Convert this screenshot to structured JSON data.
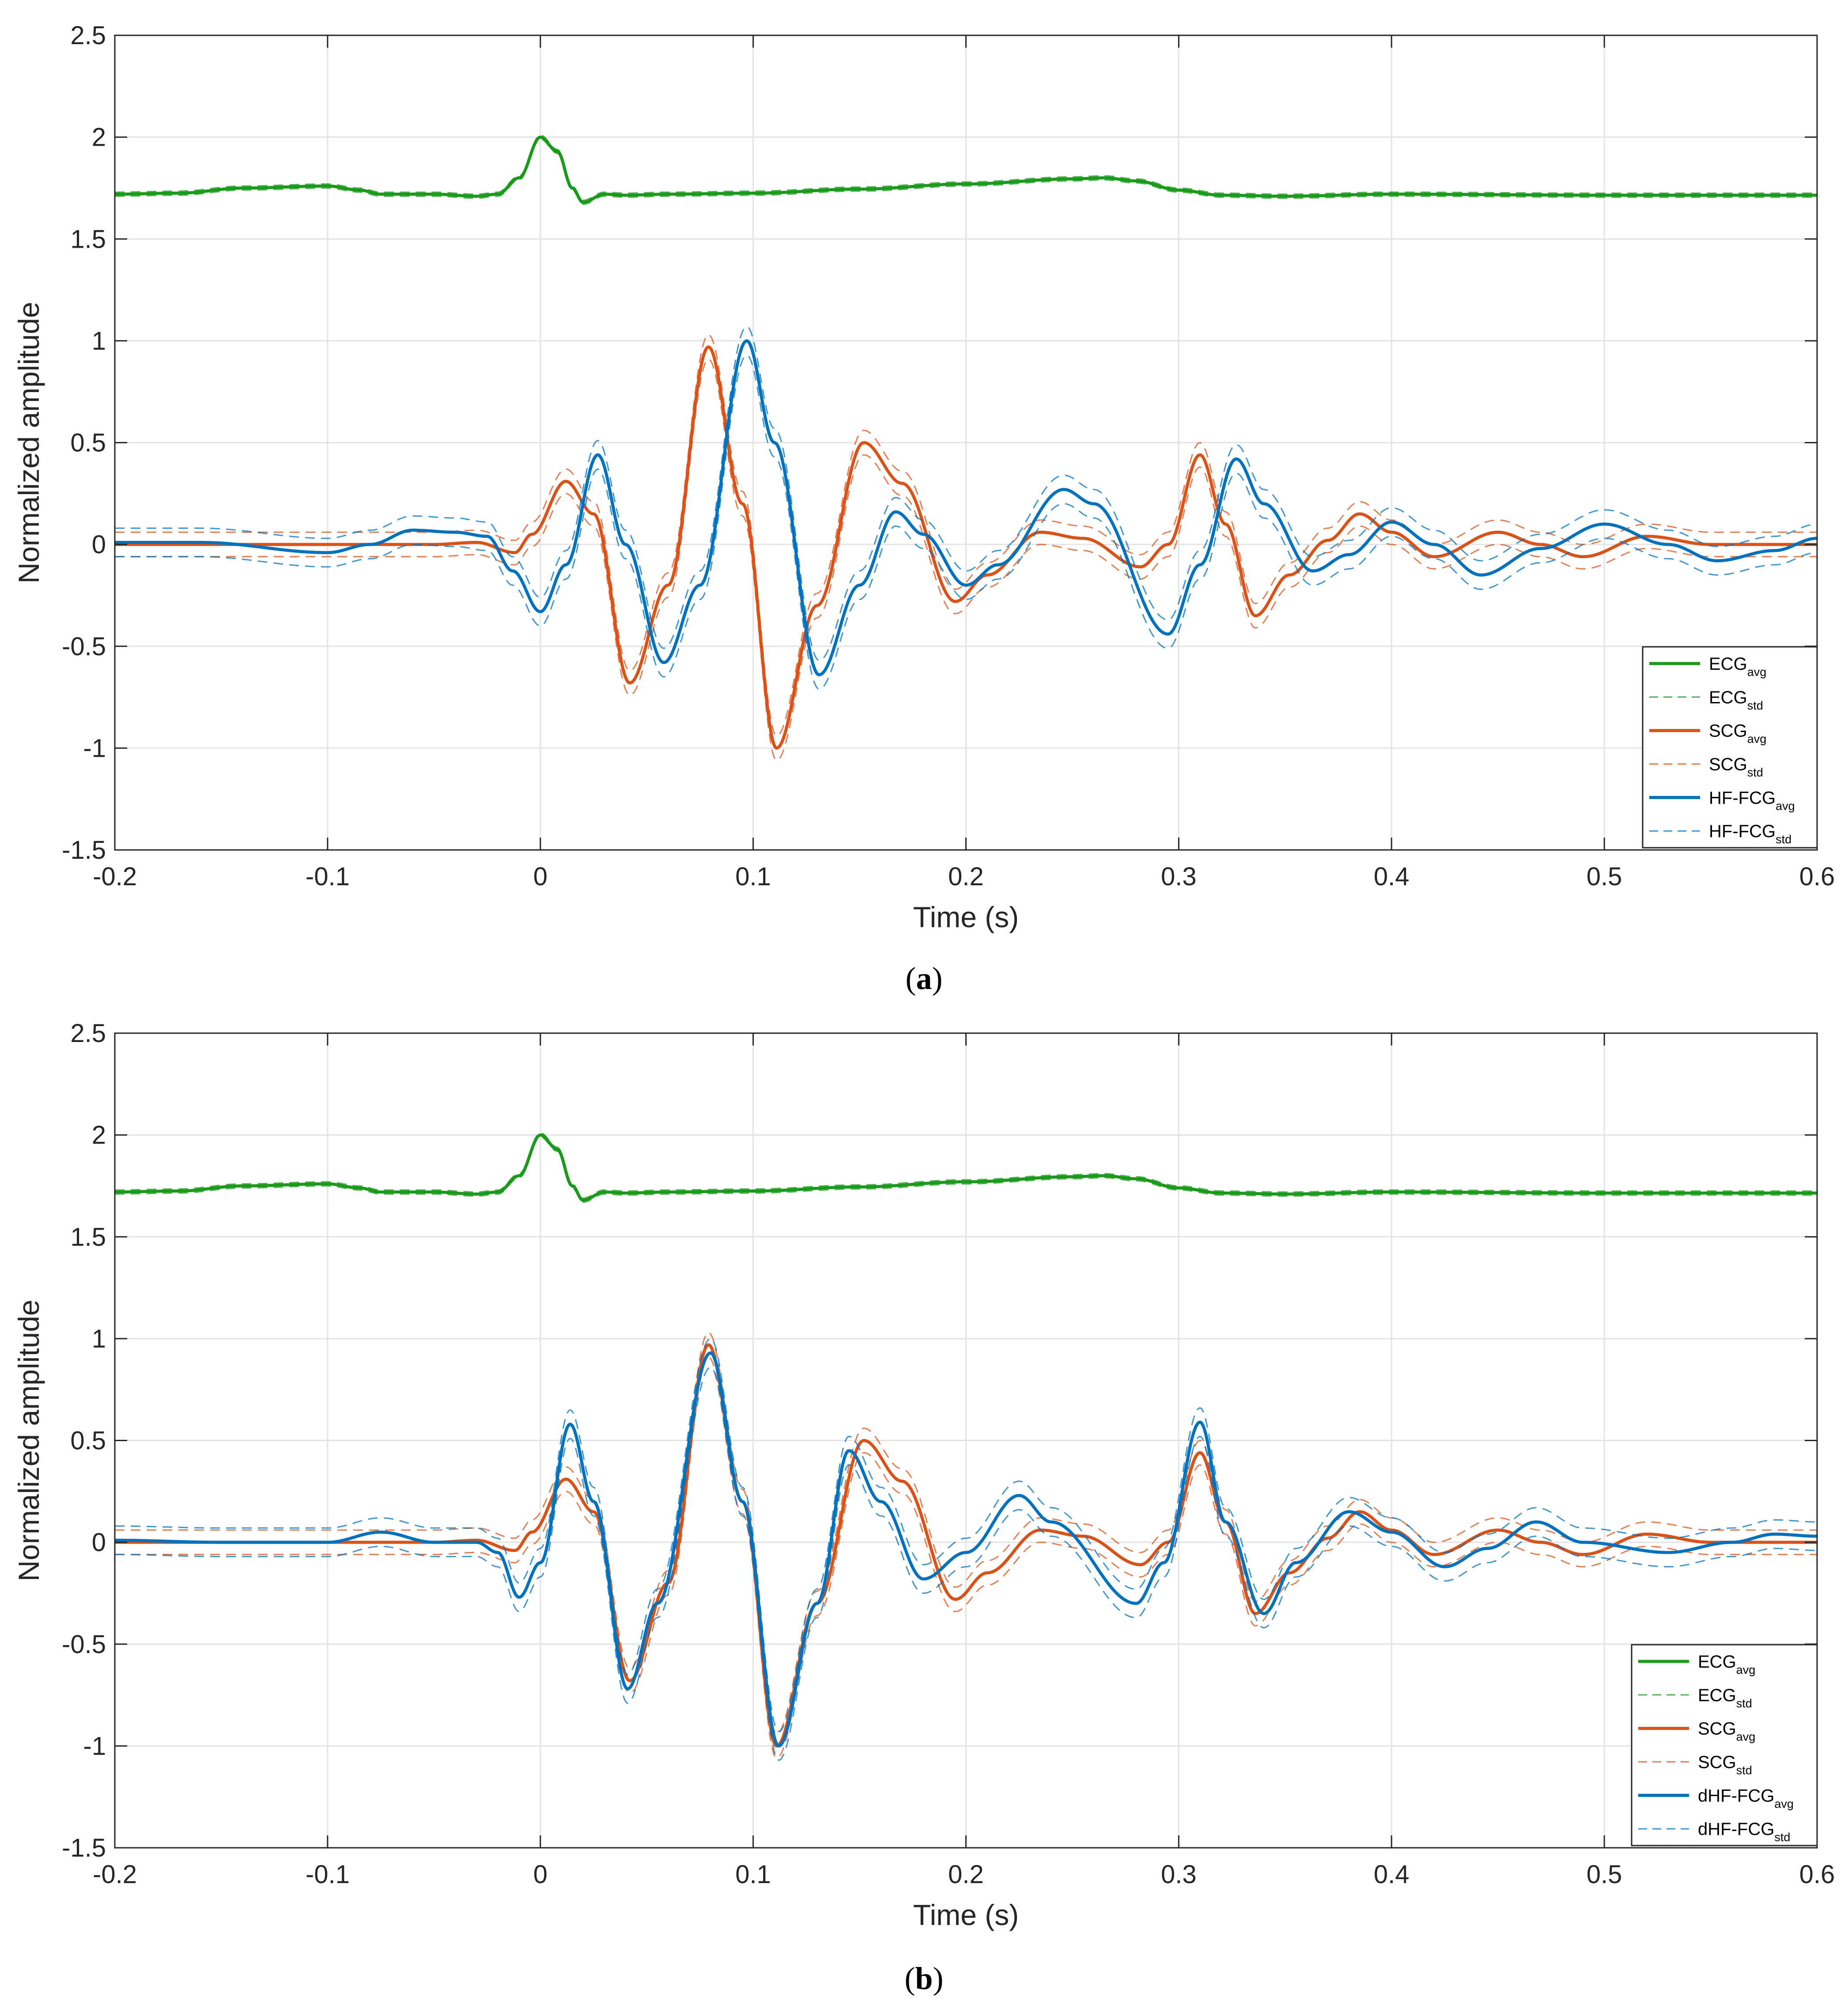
{
  "colors": {
    "ecg": "#1a9a1a",
    "scg": "#d95319",
    "fcg": "#0072bd",
    "grid": "#e3e3e3",
    "axis": "#262626"
  },
  "panels": [
    {
      "caption_open": "(",
      "caption_letter": "a",
      "caption_close": ")",
      "legend": [
        {
          "base": "ECG",
          "sub": "avg",
          "color_key": "ecg",
          "dashed": false
        },
        {
          "base": "ECG",
          "sub": "std",
          "color_key": "ecg",
          "dashed": true
        },
        {
          "base": "SCG",
          "sub": "avg",
          "color_key": "scg",
          "dashed": false
        },
        {
          "base": "SCG",
          "sub": "std",
          "color_key": "scg",
          "dashed": true
        },
        {
          "base": "HF-FCG",
          "sub": "avg",
          "color_key": "fcg",
          "dashed": false
        },
        {
          "base": "HF-FCG",
          "sub": "std",
          "color_key": "fcg",
          "dashed": true
        }
      ]
    },
    {
      "caption_open": "(",
      "caption_letter": "b",
      "caption_close": ")",
      "legend": [
        {
          "base": "ECG",
          "sub": "avg",
          "color_key": "ecg",
          "dashed": false
        },
        {
          "base": "ECG",
          "sub": "std",
          "color_key": "ecg",
          "dashed": true
        },
        {
          "base": "SCG",
          "sub": "avg",
          "color_key": "scg",
          "dashed": false
        },
        {
          "base": "SCG",
          "sub": "std",
          "color_key": "scg",
          "dashed": true
        },
        {
          "base": "dHF-FCG",
          "sub": "avg",
          "color_key": "fcg",
          "dashed": false
        },
        {
          "base": "dHF-FCG",
          "sub": "std",
          "color_key": "fcg",
          "dashed": true
        }
      ]
    }
  ],
  "chart_data": [
    {
      "type": "line",
      "title": "",
      "xlabel": "Time (s)",
      "ylabel": "Normalized amplitude",
      "xlim": [
        -0.2,
        0.6
      ],
      "ylim": [
        -1.5,
        2.5
      ],
      "xticks": [
        -0.2,
        -0.1,
        0,
        0.1,
        0.2,
        0.3,
        0.4,
        0.5,
        0.6
      ],
      "yticks": [
        -1.5,
        -1,
        -0.5,
        0,
        0.5,
        1,
        1.5,
        2,
        2.5
      ],
      "xtick_labels": [
        "-0.2",
        "-0.1",
        "0",
        "0.1",
        "0.2",
        "0.3",
        "0.4",
        "0.5",
        "0.6"
      ],
      "ytick_labels": [
        "-1.5",
        "-1",
        "-0.5",
        "0",
        "0.5",
        "1",
        "1.5",
        "2",
        "2.5"
      ],
      "grid": true,
      "legend_position": "bottom-right",
      "series": [
        {
          "name": "ECG",
          "color_key": "ecg",
          "std": 0.01,
          "points": [
            [
              -0.2,
              1.72
            ],
            [
              -0.17,
              1.725
            ],
            [
              -0.14,
              1.75
            ],
            [
              -0.1,
              1.76
            ],
            [
              -0.085,
              1.74
            ],
            [
              -0.075,
              1.72
            ],
            [
              -0.05,
              1.72
            ],
            [
              -0.03,
              1.71
            ],
            [
              -0.02,
              1.72
            ],
            [
              -0.01,
              1.8
            ],
            [
              0,
              2.0
            ],
            [
              0.008,
              1.93
            ],
            [
              0.015,
              1.75
            ],
            [
              0.02,
              1.68
            ],
            [
              0.03,
              1.72
            ],
            [
              0.04,
              1.715
            ],
            [
              0.06,
              1.72
            ],
            [
              0.1,
              1.725
            ],
            [
              0.15,
              1.745
            ],
            [
              0.2,
              1.77
            ],
            [
              0.25,
              1.795
            ],
            [
              0.265,
              1.8
            ],
            [
              0.28,
              1.785
            ],
            [
              0.3,
              1.74
            ],
            [
              0.32,
              1.715
            ],
            [
              0.35,
              1.71
            ],
            [
              0.4,
              1.72
            ],
            [
              0.5,
              1.715
            ],
            [
              0.6,
              1.715
            ]
          ]
        },
        {
          "name": "SCG",
          "color_key": "scg",
          "std": 0.06,
          "points": [
            [
              -0.2,
              0.0
            ],
            [
              -0.1,
              0.0
            ],
            [
              -0.05,
              0.0
            ],
            [
              -0.03,
              0.01
            ],
            [
              -0.012,
              -0.04
            ],
            [
              -0.004,
              0.05
            ],
            [
              0.012,
              0.31
            ],
            [
              0.025,
              0.15
            ],
            [
              0.042,
              -0.68
            ],
            [
              0.06,
              -0.2
            ],
            [
              0.079,
              0.97
            ],
            [
              0.095,
              0.2
            ],
            [
              0.111,
              -1.0
            ],
            [
              0.13,
              -0.3
            ],
            [
              0.152,
              0.5
            ],
            [
              0.17,
              0.3
            ],
            [
              0.195,
              -0.28
            ],
            [
              0.21,
              -0.15
            ],
            [
              0.235,
              0.06
            ],
            [
              0.255,
              0.03
            ],
            [
              0.282,
              -0.11
            ],
            [
              0.295,
              0.0
            ],
            [
              0.31,
              0.44
            ],
            [
              0.322,
              0.1
            ],
            [
              0.336,
              -0.35
            ],
            [
              0.352,
              -0.15
            ],
            [
              0.37,
              0.02
            ],
            [
              0.385,
              0.15
            ],
            [
              0.4,
              0.06
            ],
            [
              0.42,
              -0.06
            ],
            [
              0.45,
              0.06
            ],
            [
              0.47,
              0.0
            ],
            [
              0.49,
              -0.06
            ],
            [
              0.52,
              0.04
            ],
            [
              0.55,
              0.0
            ],
            [
              0.6,
              0.0
            ]
          ]
        },
        {
          "name": "HF-FCG",
          "color_key": "fcg",
          "std": 0.07,
          "points": [
            [
              -0.2,
              0.01
            ],
            [
              -0.16,
              0.01
            ],
            [
              -0.1,
              -0.04
            ],
            [
              -0.08,
              0.0
            ],
            [
              -0.06,
              0.07
            ],
            [
              -0.04,
              0.06
            ],
            [
              -0.025,
              0.04
            ],
            [
              -0.013,
              -0.13
            ],
            [
              0.0,
              -0.33
            ],
            [
              0.012,
              -0.1
            ],
            [
              0.027,
              0.44
            ],
            [
              0.04,
              0.0
            ],
            [
              0.058,
              -0.58
            ],
            [
              0.075,
              -0.2
            ],
            [
              0.097,
              1.0
            ],
            [
              0.11,
              0.5
            ],
            [
              0.131,
              -0.64
            ],
            [
              0.15,
              -0.2
            ],
            [
              0.167,
              0.16
            ],
            [
              0.18,
              0.05
            ],
            [
              0.2,
              -0.2
            ],
            [
              0.215,
              -0.1
            ],
            [
              0.246,
              0.27
            ],
            [
              0.26,
              0.2
            ],
            [
              0.295,
              -0.44
            ],
            [
              0.31,
              -0.1
            ],
            [
              0.327,
              0.42
            ],
            [
              0.34,
              0.2
            ],
            [
              0.363,
              -0.13
            ],
            [
              0.38,
              -0.05
            ],
            [
              0.4,
              0.11
            ],
            [
              0.42,
              0.0
            ],
            [
              0.442,
              -0.15
            ],
            [
              0.47,
              -0.02
            ],
            [
              0.5,
              0.1
            ],
            [
              0.53,
              0.0
            ],
            [
              0.553,
              -0.08
            ],
            [
              0.58,
              -0.03
            ],
            [
              0.6,
              0.03
            ]
          ]
        }
      ]
    },
    {
      "type": "line",
      "title": "",
      "xlabel": "Time (s)",
      "ylabel": "Normalized amplitude",
      "xlim": [
        -0.2,
        0.6
      ],
      "ylim": [
        -1.5,
        2.5
      ],
      "xticks": [
        -0.2,
        -0.1,
        0,
        0.1,
        0.2,
        0.3,
        0.4,
        0.5,
        0.6
      ],
      "yticks": [
        -1.5,
        -1,
        -0.5,
        0,
        0.5,
        1,
        1.5,
        2,
        2.5
      ],
      "xtick_labels": [
        "-0.2",
        "-0.1",
        "0",
        "0.1",
        "0.2",
        "0.3",
        "0.4",
        "0.5",
        "0.6"
      ],
      "ytick_labels": [
        "-1.5",
        "-1",
        "-0.5",
        "0",
        "0.5",
        "1",
        "1.5",
        "2",
        "2.5"
      ],
      "grid": true,
      "legend_position": "bottom-right",
      "series": [
        {
          "name": "ECG",
          "color_key": "ecg",
          "std": 0.01,
          "points": [
            [
              -0.2,
              1.72
            ],
            [
              -0.17,
              1.725
            ],
            [
              -0.14,
              1.75
            ],
            [
              -0.1,
              1.76
            ],
            [
              -0.085,
              1.74
            ],
            [
              -0.075,
              1.72
            ],
            [
              -0.05,
              1.72
            ],
            [
              -0.03,
              1.71
            ],
            [
              -0.02,
              1.72
            ],
            [
              -0.01,
              1.8
            ],
            [
              0,
              2.0
            ],
            [
              0.008,
              1.93
            ],
            [
              0.015,
              1.75
            ],
            [
              0.02,
              1.68
            ],
            [
              0.03,
              1.72
            ],
            [
              0.04,
              1.715
            ],
            [
              0.06,
              1.72
            ],
            [
              0.1,
              1.725
            ],
            [
              0.15,
              1.745
            ],
            [
              0.2,
              1.77
            ],
            [
              0.25,
              1.795
            ],
            [
              0.265,
              1.8
            ],
            [
              0.28,
              1.785
            ],
            [
              0.3,
              1.74
            ],
            [
              0.32,
              1.715
            ],
            [
              0.35,
              1.71
            ],
            [
              0.4,
              1.72
            ],
            [
              0.5,
              1.715
            ],
            [
              0.6,
              1.715
            ]
          ]
        },
        {
          "name": "SCG",
          "color_key": "scg",
          "std": 0.06,
          "points": [
            [
              -0.2,
              0.0
            ],
            [
              -0.1,
              0.0
            ],
            [
              -0.05,
              0.0
            ],
            [
              -0.03,
              0.01
            ],
            [
              -0.012,
              -0.04
            ],
            [
              -0.004,
              0.05
            ],
            [
              0.012,
              0.31
            ],
            [
              0.025,
              0.15
            ],
            [
              0.042,
              -0.68
            ],
            [
              0.06,
              -0.2
            ],
            [
              0.079,
              0.97
            ],
            [
              0.095,
              0.2
            ],
            [
              0.111,
              -1.0
            ],
            [
              0.13,
              -0.3
            ],
            [
              0.152,
              0.5
            ],
            [
              0.17,
              0.3
            ],
            [
              0.195,
              -0.28
            ],
            [
              0.21,
              -0.15
            ],
            [
              0.235,
              0.06
            ],
            [
              0.255,
              0.03
            ],
            [
              0.282,
              -0.11
            ],
            [
              0.295,
              0.0
            ],
            [
              0.31,
              0.44
            ],
            [
              0.322,
              0.1
            ],
            [
              0.336,
              -0.35
            ],
            [
              0.352,
              -0.15
            ],
            [
              0.37,
              0.02
            ],
            [
              0.385,
              0.15
            ],
            [
              0.4,
              0.06
            ],
            [
              0.42,
              -0.06
            ],
            [
              0.45,
              0.06
            ],
            [
              0.47,
              0.0
            ],
            [
              0.49,
              -0.06
            ],
            [
              0.52,
              0.04
            ],
            [
              0.55,
              0.0
            ],
            [
              0.6,
              0.0
            ]
          ]
        },
        {
          "name": "dHF-FCG",
          "color_key": "fcg",
          "std": 0.07,
          "points": [
            [
              -0.2,
              0.01
            ],
            [
              -0.15,
              0.0
            ],
            [
              -0.1,
              0.0
            ],
            [
              -0.075,
              0.05
            ],
            [
              -0.05,
              0.0
            ],
            [
              -0.03,
              0.0
            ],
            [
              -0.02,
              -0.05
            ],
            [
              -0.01,
              -0.27
            ],
            [
              0.0,
              -0.1
            ],
            [
              0.014,
              0.58
            ],
            [
              0.025,
              0.2
            ],
            [
              0.041,
              -0.72
            ],
            [
              0.055,
              -0.3
            ],
            [
              0.08,
              0.93
            ],
            [
              0.095,
              0.2
            ],
            [
              0.112,
              -1.0
            ],
            [
              0.13,
              -0.3
            ],
            [
              0.145,
              0.45
            ],
            [
              0.16,
              0.2
            ],
            [
              0.18,
              -0.18
            ],
            [
              0.2,
              -0.05
            ],
            [
              0.225,
              0.23
            ],
            [
              0.24,
              0.1
            ],
            [
              0.28,
              -0.3
            ],
            [
              0.293,
              -0.1
            ],
            [
              0.31,
              0.59
            ],
            [
              0.322,
              0.1
            ],
            [
              0.34,
              -0.35
            ],
            [
              0.355,
              -0.1
            ],
            [
              0.38,
              0.15
            ],
            [
              0.4,
              0.05
            ],
            [
              0.425,
              -0.12
            ],
            [
              0.445,
              -0.03
            ],
            [
              0.468,
              0.1
            ],
            [
              0.49,
              0.0
            ],
            [
              0.53,
              -0.05
            ],
            [
              0.56,
              0.0
            ],
            [
              0.58,
              0.04
            ],
            [
              0.6,
              0.03
            ]
          ]
        }
      ]
    }
  ]
}
